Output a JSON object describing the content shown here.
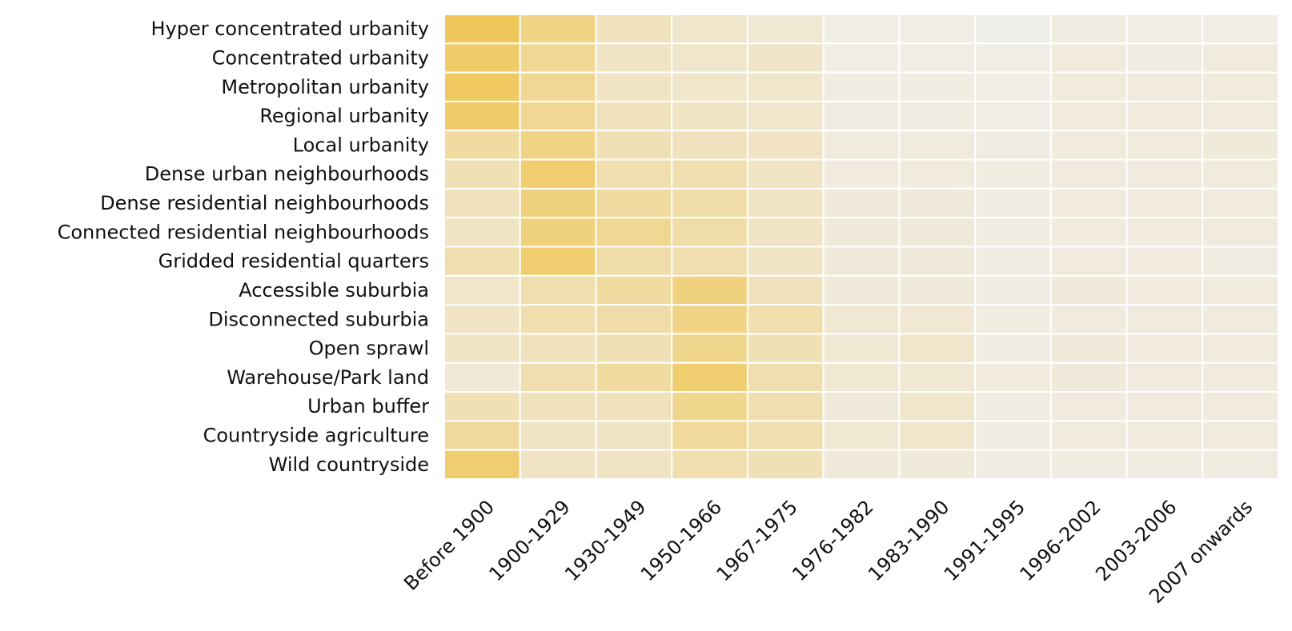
{
  "chart_data": {
    "type": "heatmap",
    "title": "",
    "xlabel": "",
    "ylabel": "",
    "rows": [
      "Hyper concentrated urbanity",
      "Concentrated urbanity",
      "Metropolitan urbanity",
      "Regional urbanity",
      "Local urbanity",
      "Dense urban neighbourhoods",
      "Dense residential neighbourhoods",
      "Connected residential neighbourhoods",
      "Gridded residential quarters",
      "Accessible suburbia",
      "Disconnected suburbia",
      "Open sprawl",
      "Warehouse/Park land",
      "Urban buffer",
      "Countryside agriculture",
      "Wild countryside"
    ],
    "columns": [
      "Before 1900",
      "1900-1929",
      "1930-1949",
      "1950-1966",
      "1967-1975",
      "1976-1982",
      "1983-1990",
      "1991-1995",
      "1996-2002",
      "2003-2006",
      "2007 onwards"
    ],
    "color_low": "#f0eee8",
    "color_high": "#f0c75a",
    "colorbar": false,
    "values": [
      [
        1.0,
        0.7,
        0.3,
        0.2,
        0.15,
        0.02,
        0.02,
        0.0,
        0.05,
        0.03,
        0.03
      ],
      [
        0.9,
        0.6,
        0.25,
        0.2,
        0.22,
        0.03,
        0.03,
        0.02,
        0.08,
        0.05,
        0.07
      ],
      [
        0.95,
        0.6,
        0.25,
        0.2,
        0.2,
        0.05,
        0.05,
        0.03,
        0.08,
        0.07,
        0.08
      ],
      [
        0.9,
        0.6,
        0.3,
        0.25,
        0.2,
        0.05,
        0.05,
        0.03,
        0.08,
        0.08,
        0.08
      ],
      [
        0.5,
        0.7,
        0.35,
        0.3,
        0.25,
        0.07,
        0.07,
        0.05,
        0.08,
        0.08,
        0.1
      ],
      [
        0.35,
        0.85,
        0.4,
        0.4,
        0.25,
        0.07,
        0.08,
        0.05,
        0.07,
        0.07,
        0.08
      ],
      [
        0.3,
        0.75,
        0.5,
        0.45,
        0.25,
        0.1,
        0.1,
        0.05,
        0.07,
        0.07,
        0.07
      ],
      [
        0.25,
        0.75,
        0.6,
        0.45,
        0.25,
        0.1,
        0.1,
        0.05,
        0.07,
        0.07,
        0.07
      ],
      [
        0.4,
        0.85,
        0.45,
        0.4,
        0.25,
        0.1,
        0.1,
        0.05,
        0.07,
        0.07,
        0.05
      ],
      [
        0.2,
        0.4,
        0.5,
        0.75,
        0.3,
        0.1,
        0.1,
        0.05,
        0.1,
        0.07,
        0.07
      ],
      [
        0.25,
        0.4,
        0.45,
        0.7,
        0.4,
        0.15,
        0.15,
        0.05,
        0.07,
        0.07,
        0.07
      ],
      [
        0.25,
        0.3,
        0.35,
        0.65,
        0.35,
        0.15,
        0.2,
        0.05,
        0.1,
        0.07,
        0.07
      ],
      [
        0.12,
        0.4,
        0.5,
        0.85,
        0.4,
        0.15,
        0.15,
        0.07,
        0.1,
        0.07,
        0.07
      ],
      [
        0.35,
        0.3,
        0.3,
        0.65,
        0.4,
        0.1,
        0.2,
        0.05,
        0.07,
        0.07,
        0.07
      ],
      [
        0.55,
        0.25,
        0.25,
        0.55,
        0.4,
        0.15,
        0.2,
        0.05,
        0.07,
        0.07,
        0.07
      ],
      [
        0.85,
        0.25,
        0.25,
        0.4,
        0.35,
        0.1,
        0.1,
        0.05,
        0.05,
        0.05,
        0.05
      ]
    ]
  }
}
